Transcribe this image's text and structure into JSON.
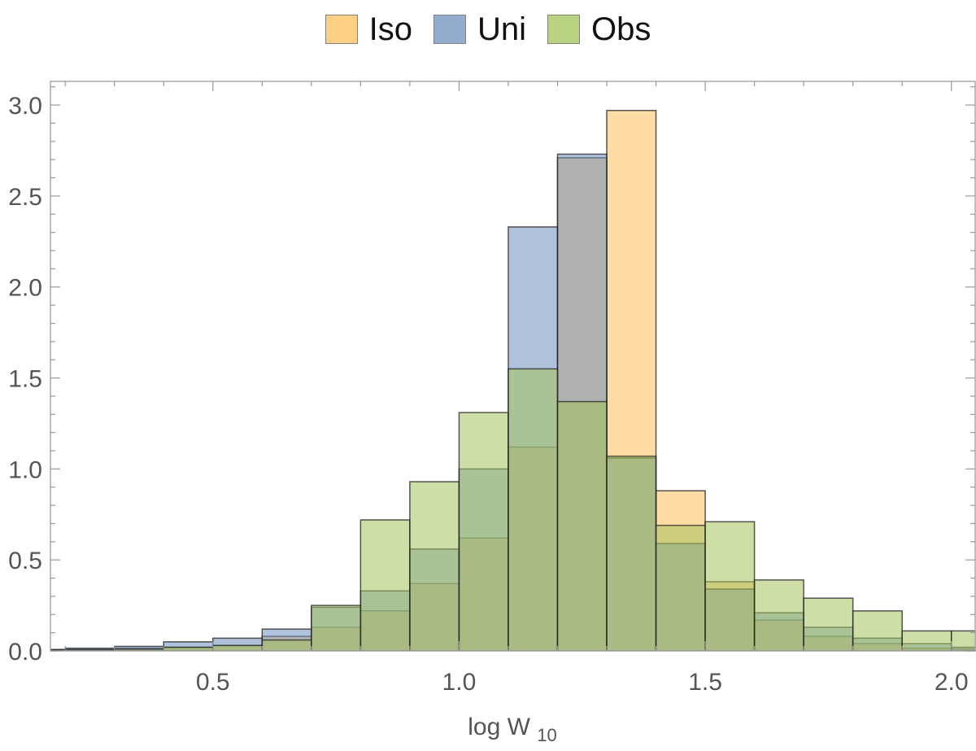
{
  "chart_data": {
    "type": "bar",
    "title": "",
    "xlabel": "log W",
    "xlabel_subscript": "10",
    "ylabel": "",
    "xlim": [
      0.17,
      2.05
    ],
    "ylim": [
      0,
      3.13
    ],
    "grid": false,
    "legend_position": "top-center",
    "x_ticks": [
      "0.5",
      "1.0",
      "1.5",
      "2.0"
    ],
    "y_ticks": [
      "0.0",
      "0.5",
      "1.0",
      "1.5",
      "2.0",
      "2.5",
      "3.0"
    ],
    "bin_edges": [
      0.1,
      0.2,
      0.3,
      0.4,
      0.5,
      0.6,
      0.7,
      0.8,
      0.9,
      1.0,
      1.1,
      1.2,
      1.3,
      1.4,
      1.5,
      1.6,
      1.7,
      1.8,
      1.9,
      2.0,
      2.1
    ],
    "series": [
      {
        "name": "Iso",
        "color": "#fdc05a",
        "values": [
          0.005,
          0.01,
          0.015,
          0.02,
          0.03,
          0.08,
          0.13,
          0.22,
          0.37,
          0.62,
          1.12,
          2.71,
          2.97,
          0.88,
          0.38,
          0.17,
          0.08,
          0.04,
          0.015,
          0.01
        ]
      },
      {
        "name": "Uni",
        "color": "#6f8fbd",
        "values": [
          0.008,
          0.015,
          0.025,
          0.05,
          0.07,
          0.12,
          0.24,
          0.33,
          0.56,
          1.0,
          2.33,
          2.73,
          1.06,
          0.59,
          0.34,
          0.21,
          0.13,
          0.07,
          0.04,
          0.02
        ]
      },
      {
        "name": "Obs",
        "color": "#a4c35c",
        "values": [
          0.003,
          0.005,
          0.01,
          0.02,
          0.03,
          0.06,
          0.25,
          0.72,
          0.93,
          1.31,
          1.55,
          1.37,
          1.07,
          0.69,
          0.71,
          0.39,
          0.29,
          0.22,
          0.11,
          0.11
        ]
      }
    ]
  }
}
